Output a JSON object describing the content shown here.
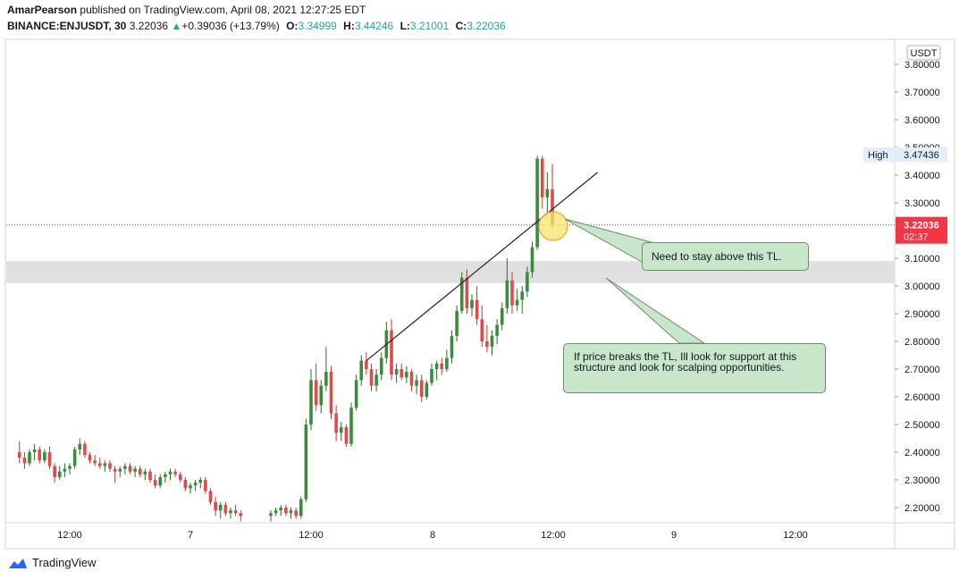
{
  "header": {
    "publisher": "AmarPearson",
    "published_text": "published on TradingView.com, April 08, 2021 12:27:25 EDT",
    "symbol": "BINANCE:ENJUSDT, 30",
    "last": "3.22036",
    "change_arrow": "▲",
    "change": "+0.39036 (+13.79%)",
    "o_label": "O:",
    "o_value": "3.34999",
    "h_label": "H:",
    "h_value": "3.44246",
    "l_label": "L:",
    "l_value": "3.21001",
    "c_label": "C:",
    "c_value": "3.22036"
  },
  "price_axis": {
    "currency": "USDT",
    "high_label": "High",
    "high_value": "3.47436",
    "current_price": "3.22036",
    "countdown": "02:37"
  },
  "annotations": {
    "callout_1": "Need to stay above this TL.",
    "callout_2": "If price breaks the TL, Ill look for support at this structure and look for scalping opportunities."
  },
  "footer": {
    "brand": "TradingView"
  },
  "colors": {
    "up": "#26a69a",
    "down": "#ef5350",
    "up_body": "#3b8a3e",
    "down_body": "#e04a4a",
    "callout": "#c8e6c9",
    "zone": "#e0e0e0",
    "price_tag": "#f23645"
  },
  "chart_data": {
    "type": "candlestick",
    "title": "BINANCE:ENJUSDT, 30",
    "ylabel": "USDT",
    "ylim": [
      2.15,
      3.85
    ],
    "y_ticks": [
      "3.80000",
      "3.70000",
      "3.60000",
      "3.50000",
      "3.40000",
      "3.30000",
      "3.20000",
      "3.10000",
      "3.00000",
      "2.90000",
      "2.80000",
      "2.70000",
      "2.60000",
      "2.50000",
      "2.40000",
      "2.30000",
      "2.20000"
    ],
    "x_ticks": [
      "12:00",
      "7",
      "12:00",
      "8",
      "12:00",
      "9",
      "12:00"
    ],
    "support_zone": [
      3.01,
      3.09
    ],
    "trendline": {
      "start": [
        "Apr 7 17:30",
        2.73
      ],
      "end": [
        "Apr 8 16:30",
        3.41
      ]
    },
    "current_price": 3.22036,
    "candles": [
      [
        "Apr 6 07:00",
        2.4,
        2.44,
        2.36,
        2.38
      ],
      [
        "Apr 6 07:30",
        2.38,
        2.4,
        2.34,
        2.36
      ],
      [
        "Apr 6 08:00",
        2.36,
        2.41,
        2.35,
        2.4
      ],
      [
        "Apr 6 08:30",
        2.4,
        2.43,
        2.37,
        2.41
      ],
      [
        "Apr 6 09:00",
        2.41,
        2.42,
        2.36,
        2.37
      ],
      [
        "Apr 6 09:30",
        2.37,
        2.41,
        2.36,
        2.4
      ],
      [
        "Apr 6 10:00",
        2.4,
        2.42,
        2.34,
        2.35
      ],
      [
        "Apr 6 10:30",
        2.35,
        2.36,
        2.29,
        2.31
      ],
      [
        "Apr 6 11:00",
        2.31,
        2.35,
        2.3,
        2.33
      ],
      [
        "Apr 6 11:30",
        2.33,
        2.36,
        2.31,
        2.34
      ],
      [
        "Apr 6 12:00",
        2.34,
        2.36,
        2.32,
        2.35
      ],
      [
        "Apr 6 12:30",
        2.35,
        2.42,
        2.34,
        2.41
      ],
      [
        "Apr 6 13:00",
        2.41,
        2.45,
        2.39,
        2.43
      ],
      [
        "Apr 6 13:30",
        2.43,
        2.44,
        2.38,
        2.39
      ],
      [
        "Apr 6 14:00",
        2.39,
        2.4,
        2.36,
        2.37
      ],
      [
        "Apr 6 14:30",
        2.37,
        2.39,
        2.35,
        2.36
      ],
      [
        "Apr 6 15:00",
        2.36,
        2.38,
        2.34,
        2.35
      ],
      [
        "Apr 6 15:30",
        2.35,
        2.37,
        2.33,
        2.36
      ],
      [
        "Apr 6 16:00",
        2.36,
        2.37,
        2.33,
        2.34
      ],
      [
        "Apr 6 16:30",
        2.34,
        2.35,
        2.29,
        2.33
      ],
      [
        "Apr 6 17:00",
        2.33,
        2.35,
        2.31,
        2.34
      ],
      [
        "Apr 6 17:30",
        2.34,
        2.36,
        2.32,
        2.35
      ],
      [
        "Apr 6 18:00",
        2.35,
        2.36,
        2.32,
        2.33
      ],
      [
        "Apr 6 18:30",
        2.33,
        2.35,
        2.31,
        2.34
      ],
      [
        "Apr 6 19:00",
        2.34,
        2.35,
        2.31,
        2.32
      ],
      [
        "Apr 6 19:30",
        2.32,
        2.34,
        2.3,
        2.33
      ],
      [
        "Apr 6 20:00",
        2.33,
        2.34,
        2.29,
        2.3
      ],
      [
        "Apr 6 20:30",
        2.3,
        2.32,
        2.27,
        2.28
      ],
      [
        "Apr 6 21:00",
        2.28,
        2.32,
        2.27,
        2.31
      ],
      [
        "Apr 6 21:30",
        2.31,
        2.33,
        2.29,
        2.32
      ],
      [
        "Apr 6 22:00",
        2.32,
        2.34,
        2.3,
        2.33
      ],
      [
        "Apr 6 22:30",
        2.33,
        2.34,
        2.31,
        2.32
      ],
      [
        "Apr 6 23:00",
        2.32,
        2.33,
        2.29,
        2.3
      ],
      [
        "Apr 6 23:30",
        2.3,
        2.31,
        2.26,
        2.27
      ],
      [
        "Apr 7 00:00",
        2.27,
        2.29,
        2.25,
        2.28
      ],
      [
        "Apr 7 00:30",
        2.28,
        2.3,
        2.26,
        2.29
      ],
      [
        "Apr 7 01:00",
        2.29,
        2.31,
        2.27,
        2.3
      ],
      [
        "Apr 7 01:30",
        2.3,
        2.31,
        2.25,
        2.26
      ],
      [
        "Apr 7 02:00",
        2.26,
        2.27,
        2.21,
        2.22
      ],
      [
        "Apr 7 02:30",
        2.22,
        2.24,
        2.17,
        2.19
      ],
      [
        "Apr 7 03:00",
        2.19,
        2.22,
        2.16,
        2.21
      ],
      [
        "Apr 7 03:30",
        2.21,
        2.22,
        2.17,
        2.18
      ],
      [
        "Apr 7 04:00",
        2.18,
        2.2,
        2.16,
        2.19
      ],
      [
        "Apr 7 04:30",
        2.19,
        2.21,
        2.17,
        2.18
      ],
      [
        "Apr 7 05:00",
        2.18,
        2.19,
        2.15,
        2.17
      ],
      [
        "Apr 7 08:00",
        2.17,
        2.19,
        2.15,
        2.18
      ],
      [
        "Apr 7 08:30",
        2.18,
        2.2,
        2.17,
        2.19
      ],
      [
        "Apr 7 09:00",
        2.19,
        2.21,
        2.17,
        2.2
      ],
      [
        "Apr 7 09:30",
        2.2,
        2.21,
        2.17,
        2.18
      ],
      [
        "Apr 7 10:00",
        2.18,
        2.2,
        2.16,
        2.19
      ],
      [
        "Apr 7 10:30",
        2.19,
        2.2,
        2.16,
        2.17
      ],
      [
        "Apr 7 11:00",
        2.17,
        2.24,
        2.16,
        2.23
      ],
      [
        "Apr 7 11:30",
        2.23,
        2.52,
        2.22,
        2.5
      ],
      [
        "Apr 7 12:00",
        2.5,
        2.7,
        2.48,
        2.66
      ],
      [
        "Apr 7 12:30",
        2.66,
        2.72,
        2.55,
        2.57
      ],
      [
        "Apr 7 13:00",
        2.57,
        2.66,
        2.54,
        2.64
      ],
      [
        "Apr 7 13:30",
        2.64,
        2.78,
        2.62,
        2.69
      ],
      [
        "Apr 7 14:00",
        2.69,
        2.71,
        2.52,
        2.54
      ],
      [
        "Apr 7 14:30",
        2.54,
        2.57,
        2.44,
        2.47
      ],
      [
        "Apr 7 15:00",
        2.47,
        2.51,
        2.44,
        2.49
      ],
      [
        "Apr 7 15:30",
        2.49,
        2.5,
        2.42,
        2.43
      ],
      [
        "Apr 7 16:00",
        2.43,
        2.58,
        2.42,
        2.56
      ],
      [
        "Apr 7 16:30",
        2.56,
        2.68,
        2.55,
        2.66
      ],
      [
        "Apr 7 17:00",
        2.66,
        2.75,
        2.64,
        2.73
      ],
      [
        "Apr 7 17:30",
        2.73,
        2.76,
        2.68,
        2.7
      ],
      [
        "Apr 7 18:00",
        2.7,
        2.72,
        2.62,
        2.64
      ],
      [
        "Apr 7 18:30",
        2.64,
        2.7,
        2.62,
        2.68
      ],
      [
        "Apr 7 19:00",
        2.68,
        2.76,
        2.66,
        2.74
      ],
      [
        "Apr 7 19:30",
        2.74,
        2.87,
        2.72,
        2.84
      ],
      [
        "Apr 7 20:00",
        2.84,
        2.88,
        2.66,
        2.68
      ],
      [
        "Apr 7 20:30",
        2.68,
        2.72,
        2.65,
        2.7
      ],
      [
        "Apr 7 21:00",
        2.7,
        2.72,
        2.66,
        2.67
      ],
      [
        "Apr 7 21:30",
        2.67,
        2.71,
        2.65,
        2.69
      ],
      [
        "Apr 7 22:00",
        2.69,
        2.7,
        2.62,
        2.64
      ],
      [
        "Apr 7 22:30",
        2.64,
        2.68,
        2.61,
        2.66
      ],
      [
        "Apr 7 23:00",
        2.66,
        2.68,
        2.58,
        2.6
      ],
      [
        "Apr 7 23:30",
        2.6,
        2.66,
        2.59,
        2.65
      ],
      [
        "Apr 8 00:00",
        2.65,
        2.72,
        2.64,
        2.7
      ],
      [
        "Apr 8 00:30",
        2.7,
        2.73,
        2.66,
        2.72
      ],
      [
        "Apr 8 01:00",
        2.72,
        2.74,
        2.68,
        2.7
      ],
      [
        "Apr 8 01:30",
        2.7,
        2.77,
        2.69,
        2.74
      ],
      [
        "Apr 8 02:00",
        2.74,
        2.84,
        2.72,
        2.82
      ],
      [
        "Apr 8 02:30",
        2.82,
        2.93,
        2.8,
        2.91
      ],
      [
        "Apr 8 03:00",
        2.91,
        3.05,
        2.9,
        3.03
      ],
      [
        "Apr 8 03:30",
        3.03,
        3.06,
        2.9,
        2.92
      ],
      [
        "Apr 8 04:00",
        2.92,
        2.97,
        2.89,
        2.95
      ],
      [
        "Apr 8 04:30",
        2.95,
        3.0,
        2.86,
        2.88
      ],
      [
        "Apr 8 05:00",
        2.88,
        2.93,
        2.78,
        2.8
      ],
      [
        "Apr 8 05:30",
        2.8,
        2.86,
        2.76,
        2.78
      ],
      [
        "Apr 8 06:00",
        2.78,
        2.84,
        2.75,
        2.82
      ],
      [
        "Apr 8 06:30",
        2.82,
        2.88,
        2.79,
        2.86
      ],
      [
        "Apr 8 07:00",
        2.86,
        2.94,
        2.84,
        2.92
      ],
      [
        "Apr 8 07:30",
        2.92,
        3.1,
        2.9,
        3.02
      ],
      [
        "Apr 8 08:00",
        3.02,
        3.05,
        2.9,
        2.93
      ],
      [
        "Apr 8 08:30",
        2.93,
        2.99,
        2.91,
        2.95
      ],
      [
        "Apr 8 09:00",
        2.95,
        3.0,
        2.9,
        2.98
      ],
      [
        "Apr 8 09:30",
        2.98,
        3.07,
        2.96,
        3.05
      ],
      [
        "Apr 8 10:00",
        3.05,
        3.16,
        3.03,
        3.14
      ],
      [
        "Apr 8 10:30",
        3.14,
        3.47,
        3.13,
        3.46
      ],
      [
        "Apr 8 11:00",
        3.46,
        3.47,
        3.28,
        3.32
      ],
      [
        "Apr 8 11:30",
        3.32,
        3.41,
        3.26,
        3.35
      ],
      [
        "Apr 8 12:00",
        3.35,
        3.44,
        3.21,
        3.22
      ]
    ]
  }
}
